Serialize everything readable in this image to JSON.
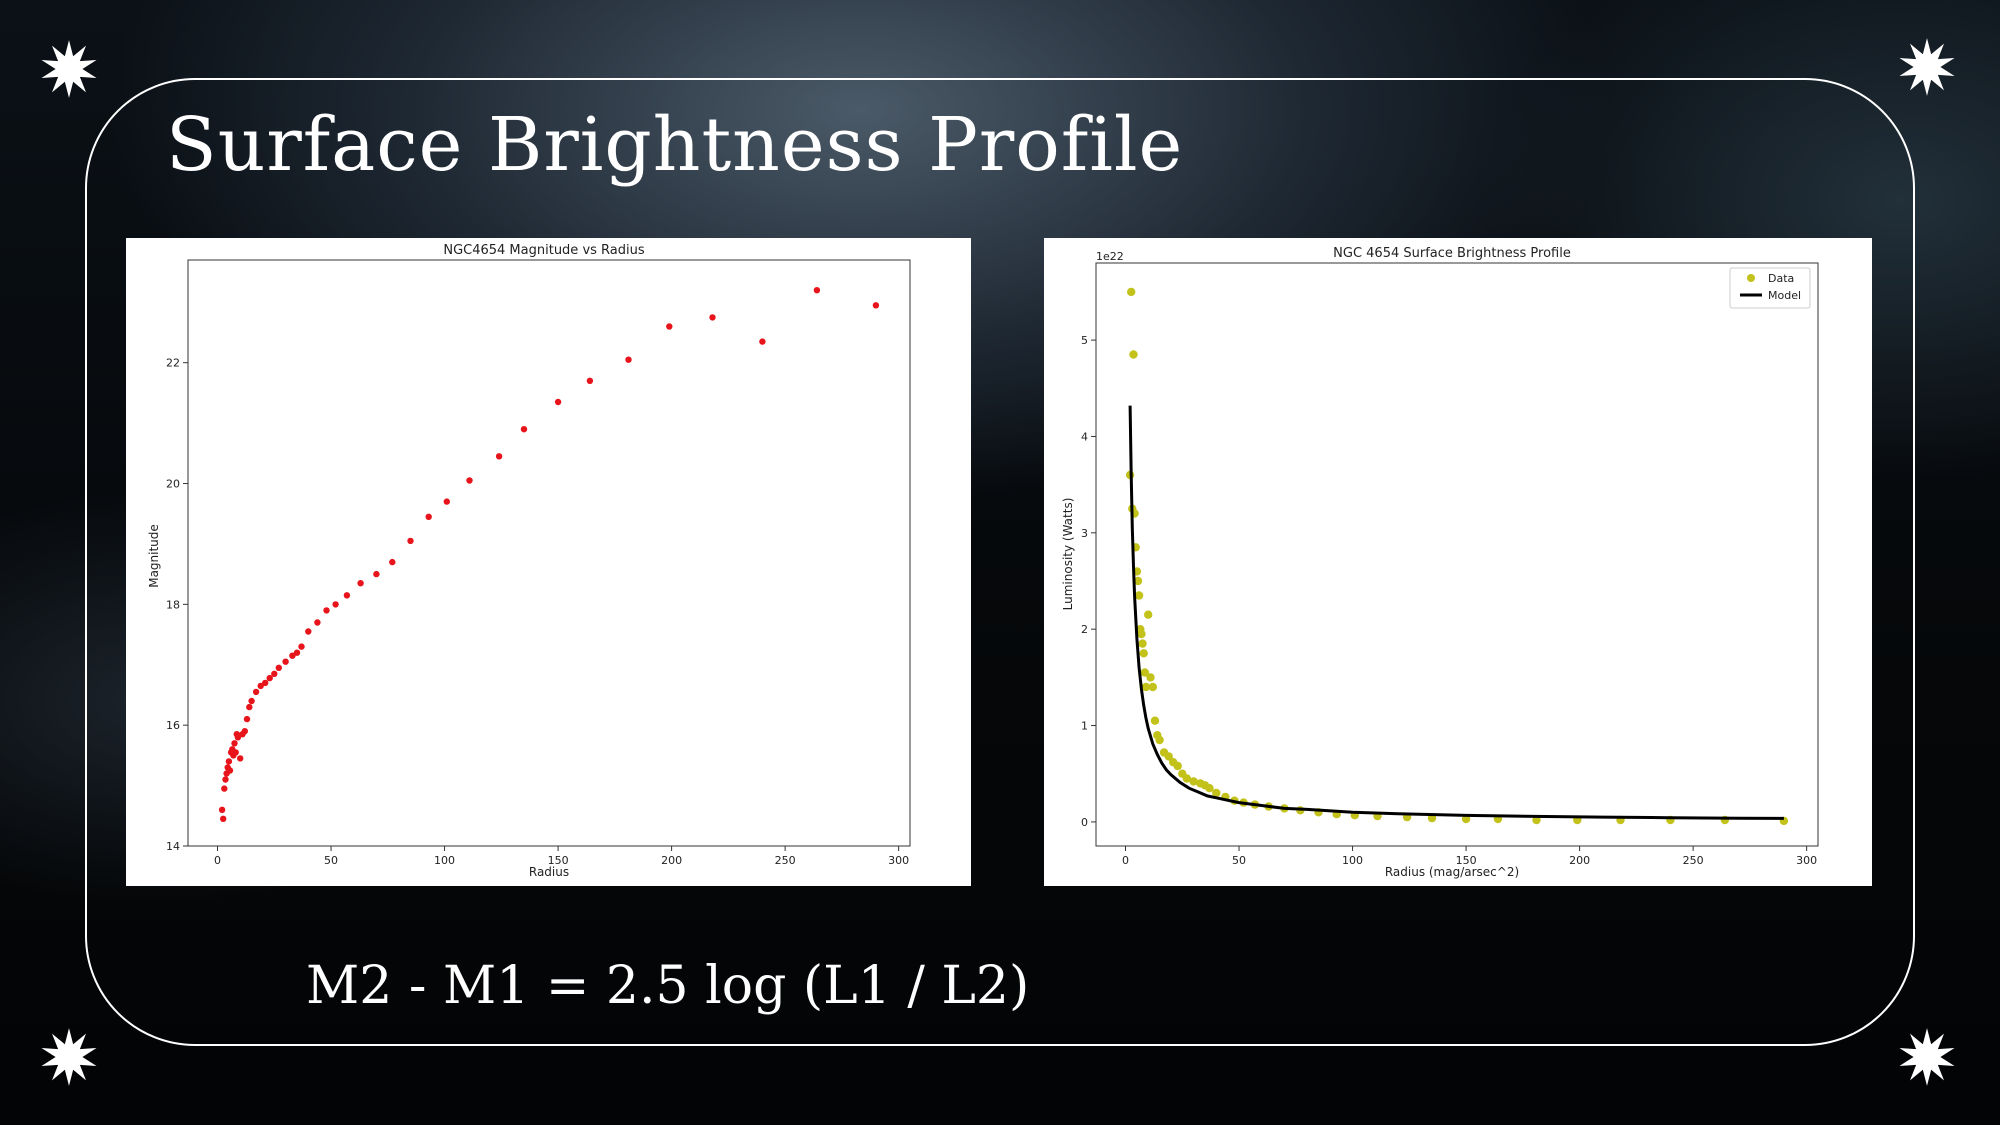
{
  "slide": {
    "title": "Surface Brightness Profile",
    "formula": "M2 - M1 = 2.5 log (L1 / L2)"
  },
  "colors": {
    "frame": "#ffffff",
    "left_points": "#e8141b",
    "right_points": "#c2c21a",
    "model_line": "#000000"
  },
  "chart_data": [
    {
      "type": "scatter",
      "title": "NGC4654 Magnitude vs Radius",
      "xlabel": "Radius",
      "ylabel": "Magnitude",
      "xlim": [
        -13,
        305
      ],
      "ylim": [
        14,
        23.7
      ],
      "xticks": [
        0,
        50,
        100,
        150,
        200,
        250,
        300
      ],
      "yticks": [
        14,
        16,
        18,
        20,
        22
      ],
      "grid": false,
      "series": [
        {
          "x": [
            2,
            2.5,
            3,
            3.5,
            4,
            4.5,
            5,
            5.5,
            6,
            6.5,
            7,
            7.5,
            8,
            8.5,
            9,
            10,
            11,
            12,
            13,
            14,
            15,
            17,
            19,
            21,
            23,
            25,
            27,
            30,
            33,
            35,
            37,
            40,
            44,
            48,
            52,
            57,
            63,
            70,
            77,
            85,
            93,
            101,
            111,
            124,
            135,
            150,
            164,
            181,
            199,
            218,
            240,
            264,
            290
          ],
          "y": [
            14.6,
            14.45,
            14.95,
            15.1,
            15.2,
            15.3,
            15.4,
            15.25,
            15.55,
            15.6,
            15.5,
            15.7,
            15.55,
            15.85,
            15.8,
            15.45,
            15.85,
            15.9,
            16.1,
            16.3,
            16.4,
            16.55,
            16.65,
            16.7,
            16.78,
            16.85,
            16.95,
            17.05,
            17.15,
            17.2,
            17.3,
            17.55,
            17.7,
            17.9,
            18.0,
            18.15,
            18.35,
            18.5,
            18.7,
            19.05,
            19.45,
            19.7,
            20.05,
            20.45,
            20.9,
            21.35,
            21.7,
            22.05,
            22.6,
            22.75,
            22.35,
            23.2,
            22.95
          ]
        }
      ]
    },
    {
      "type": "scatter",
      "title": "NGC 4654 Surface Brightness Profile",
      "xlabel": "Radius (mag/arsec^2)",
      "ylabel": "Luminosity (Watts)",
      "offset_label": "1e22",
      "xlim": [
        -13,
        305
      ],
      "ylim": [
        -0.25,
        5.8
      ],
      "xticks": [
        0,
        50,
        100,
        150,
        200,
        250,
        300
      ],
      "yticks": [
        0,
        1,
        2,
        3,
        4,
        5
      ],
      "grid": false,
      "legend": "top-right",
      "series": [
        {
          "name": "Data",
          "x": [
            2,
            2.5,
            3,
            3.5,
            4,
            4.5,
            5,
            5.5,
            6,
            6.5,
            7,
            7.5,
            8,
            8.5,
            9,
            10,
            11,
            12,
            13,
            14,
            15,
            17,
            19,
            21,
            23,
            25,
            27,
            30,
            33,
            35,
            37,
            40,
            44,
            48,
            52,
            57,
            63,
            70,
            77,
            85,
            93,
            101,
            111,
            124,
            135,
            150,
            164,
            181,
            199,
            218,
            240,
            264,
            290
          ],
          "y": [
            3.6,
            5.5,
            3.25,
            4.85,
            3.2,
            2.85,
            2.6,
            2.5,
            2.35,
            2.0,
            1.95,
            1.85,
            1.75,
            1.55,
            1.4,
            2.15,
            1.5,
            1.4,
            1.05,
            0.9,
            0.85,
            0.72,
            0.68,
            0.62,
            0.58,
            0.5,
            0.45,
            0.42,
            0.4,
            0.38,
            0.35,
            0.3,
            0.26,
            0.22,
            0.2,
            0.18,
            0.16,
            0.14,
            0.12,
            0.1,
            0.08,
            0.07,
            0.06,
            0.05,
            0.04,
            0.03,
            0.03,
            0.02,
            0.02,
            0.02,
            0.02,
            0.02,
            0.01
          ]
        },
        {
          "name": "Model",
          "x": [
            2,
            2.5,
            3,
            3.5,
            4,
            5,
            6,
            7,
            8,
            9,
            10,
            12,
            14,
            16,
            18,
            20,
            24,
            28,
            32,
            36,
            40,
            50,
            60,
            70,
            80,
            100,
            120,
            150,
            180,
            210,
            240,
            270,
            290
          ],
          "y": [
            4.32,
            3.6,
            3.05,
            2.65,
            2.34,
            1.9,
            1.6,
            1.38,
            1.21,
            1.08,
            0.97,
            0.81,
            0.7,
            0.61,
            0.54,
            0.49,
            0.41,
            0.35,
            0.31,
            0.27,
            0.25,
            0.2,
            0.17,
            0.14,
            0.13,
            0.1,
            0.085,
            0.068,
            0.057,
            0.05,
            0.044,
            0.039,
            0.036
          ]
        }
      ]
    }
  ]
}
